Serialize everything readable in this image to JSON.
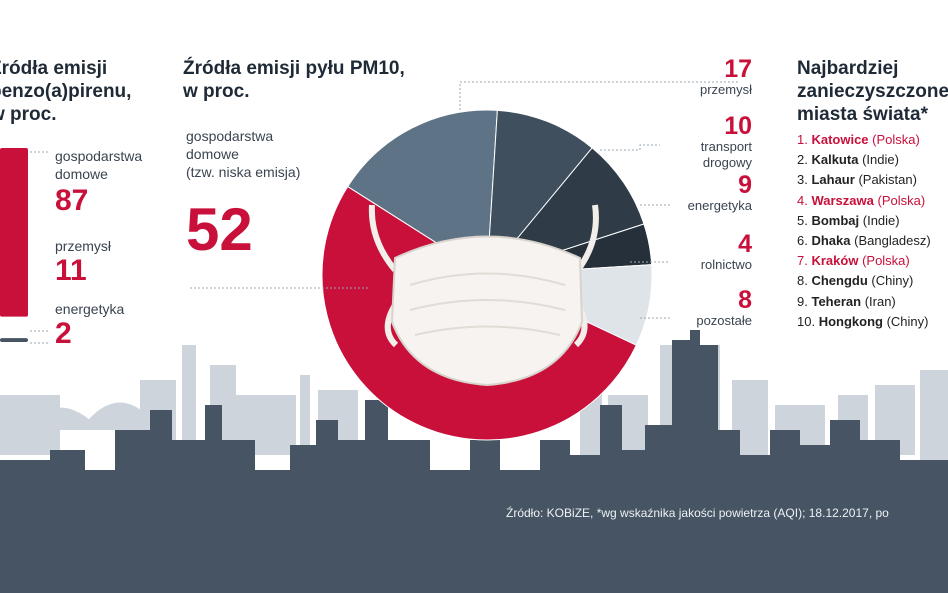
{
  "left_panel": {
    "title_lines": [
      "Źródła emisji",
      "benzo(a)pirenu,",
      "w proc."
    ],
    "items": [
      {
        "label_lines": [
          "gospodarstwa",
          "domowe"
        ],
        "value": "87"
      },
      {
        "label_lines": [
          "przemysł"
        ],
        "value": "11"
      },
      {
        "label_lines": [
          "energetyka"
        ],
        "value": "2"
      }
    ]
  },
  "middle_panel": {
    "title_lines": [
      "Źródła emisji pyłu PM10,",
      "w proc."
    ],
    "main_label_lines": [
      "gospodarstwa",
      "domowe",
      "(tzw. niska emisja)"
    ],
    "main_value": "52"
  },
  "right_panel": {
    "title_lines": [
      "Najbardziej",
      "zanieczyszczone",
      "miasta świata*"
    ],
    "cities": [
      {
        "rank": "1.",
        "name": "Katowice",
        "country": "(Polska)",
        "polish": true
      },
      {
        "rank": "2.",
        "name": "Kalkuta",
        "country": "(Indie)",
        "polish": false
      },
      {
        "rank": "3.",
        "name": "Lahaur",
        "country": "(Pakistan)",
        "polish": false
      },
      {
        "rank": "4.",
        "name": "Warszawa",
        "country": "(Polska)",
        "polish": true
      },
      {
        "rank": "5.",
        "name": "Bombaj",
        "country": "(Indie)",
        "polish": false
      },
      {
        "rank": "6.",
        "name": "Dhaka",
        "country": "(Bangladesz)",
        "polish": false
      },
      {
        "rank": "7.",
        "name": "Kraków",
        "country": "(Polska)",
        "polish": true
      },
      {
        "rank": "8.",
        "name": "Chengdu",
        "country": "(Chiny)",
        "polish": false
      },
      {
        "rank": "9.",
        "name": "Teheran",
        "country": "(Iran)",
        "polish": false
      },
      {
        "rank": "10.",
        "name": "Hongkong",
        "country": "(Chiny)",
        "polish": false
      }
    ]
  },
  "source_text": "Źródło: KOBiZE, *wg wskaźnika jakości powietrza (AQI); 18.12.2017, po",
  "colors": {
    "accent": "#c8103a",
    "skyline_dark": "#465463",
    "skyline_light": "#cdd4db",
    "slate": "#5e7386",
    "slate_light": "#93a5b5",
    "dark": "#2f3b46"
  },
  "chart_data": [
    {
      "type": "bar",
      "title": "Źródła emisji benzo(a)pirenu, w proc.",
      "categories": [
        "gospodarstwa domowe",
        "przemysł",
        "energetyka"
      ],
      "values": [
        87,
        11,
        2
      ],
      "colors": [
        "#c8103a",
        "#ffffff",
        "#465463"
      ]
    },
    {
      "type": "pie",
      "title": "Źródła emisji pyłu PM10, w proc.",
      "slices": [
        {
          "label": "gospodarstwa domowe (tzw. niska emisja)",
          "value": 52,
          "color": "#c8103a"
        },
        {
          "label": "przemysł",
          "value": 17,
          "color": "#5e7386"
        },
        {
          "label": "transport drogowy",
          "value": 10,
          "color": "#3f4f5e"
        },
        {
          "label": "energetyka",
          "value": 9,
          "color": "#2f3b46"
        },
        {
          "label": "rolnictwo",
          "value": 4,
          "color": "#25303a"
        },
        {
          "label": "pozostałe",
          "value": 8,
          "color": "#dfe4e9"
        }
      ]
    }
  ]
}
